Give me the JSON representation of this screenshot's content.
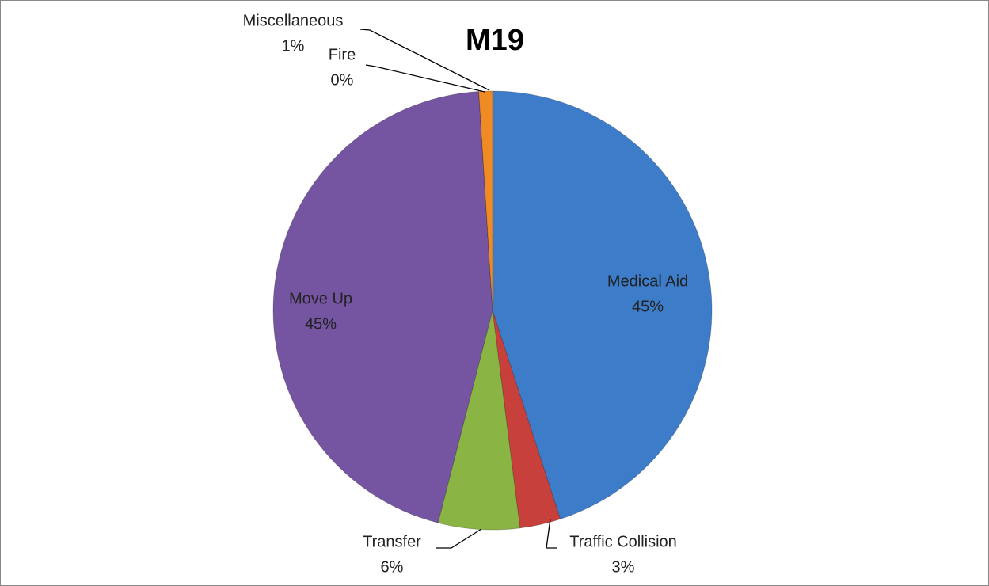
{
  "chart_data": {
    "type": "pie",
    "title": "M19",
    "categories": [
      "Medical Aid",
      "Traffic Collision",
      "Transfer",
      "Move Up",
      "Fire",
      "Miscellaneous"
    ],
    "values": [
      45,
      3,
      6,
      45,
      0,
      1
    ],
    "value_labels": [
      "45%",
      "3%",
      "6%",
      "45%",
      "0%",
      "1%"
    ],
    "colors": [
      "#3d7cc9",
      "#c8403c",
      "#8ab443",
      "#7555a2",
      "#2ea3bb",
      "#f08a24"
    ]
  }
}
